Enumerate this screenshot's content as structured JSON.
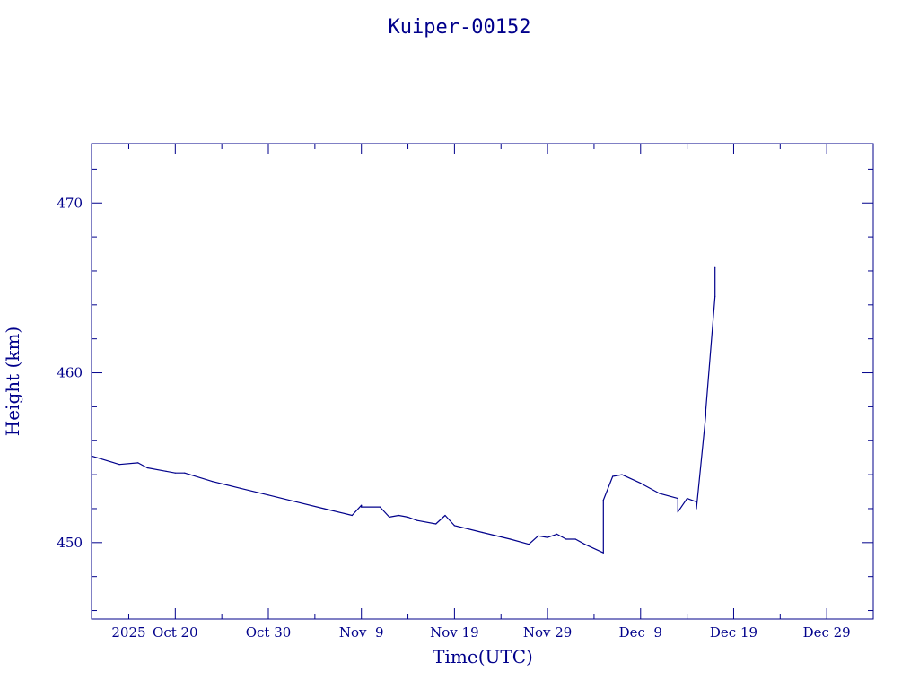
{
  "chart_data": {
    "type": "line",
    "title": "Kuiper-00152",
    "xlabel": "Time(UTC)",
    "ylabel": "Height (km)",
    "xlim": [
      "2025-10-11",
      "2026-01-03"
    ],
    "ylim": [
      445.5,
      473.5
    ],
    "grid": false,
    "x_tick_labels": [
      {
        "date": "2025-10-15",
        "label": "2025"
      },
      {
        "date": "2025-10-20",
        "label": "Oct 20"
      },
      {
        "date": "2025-10-30",
        "label": "Oct 30"
      },
      {
        "date": "2025-11-09",
        "label": "Nov  9"
      },
      {
        "date": "2025-11-19",
        "label": "Nov 19"
      },
      {
        "date": "2025-11-29",
        "label": "Nov 29"
      },
      {
        "date": "2025-12-09",
        "label": "Dec  9"
      },
      {
        "date": "2025-12-19",
        "label": "Dec 19"
      },
      {
        "date": "2025-12-29",
        "label": "Dec 29"
      }
    ],
    "y_ticks": [
      {
        "value": 450,
        "label": "450"
      },
      {
        "value": 460,
        "label": "460"
      },
      {
        "value": 470,
        "label": "470"
      }
    ],
    "series": [
      {
        "x": [
          "2025-10-11",
          "2025-10-14",
          "2025-10-16",
          "2025-10-17",
          "2025-10-19",
          "2025-10-20",
          "2025-10-21",
          "2025-10-24",
          "2025-10-27",
          "2025-10-30",
          "2025-11-02",
          "2025-11-05",
          "2025-11-08",
          "2025-11-09",
          "2025-11-09",
          "2025-11-11",
          "2025-11-12",
          "2025-11-13",
          "2025-11-14",
          "2025-11-15",
          "2025-11-17",
          "2025-11-18",
          "2025-11-19",
          "2025-11-19",
          "2025-11-22",
          "2025-11-25",
          "2025-11-27",
          "2025-11-28",
          "2025-11-29",
          "2025-11-30",
          "2025-12-01",
          "2025-12-02",
          "2025-12-03",
          "2025-12-05",
          "2025-12-05",
          "2025-12-06",
          "2025-12-07",
          "2025-12-09",
          "2025-12-11",
          "2025-12-13",
          "2025-12-13",
          "2025-12-14",
          "2025-12-15",
          "2025-12-15",
          "2025-12-16",
          "2025-12-16",
          "2025-12-17",
          "2025-12-17"
        ],
        "y": [
          455.1,
          454.6,
          454.7,
          454.4,
          454.2,
          454.1,
          454.1,
          453.6,
          453.2,
          452.8,
          452.4,
          452.0,
          451.6,
          452.2,
          452.1,
          452.1,
          451.5,
          451.6,
          451.5,
          451.3,
          451.1,
          451.6,
          451.0,
          451.0,
          450.6,
          450.2,
          449.9,
          450.4,
          450.3,
          450.5,
          450.2,
          450.2,
          449.9,
          449.4,
          452.5,
          453.9,
          454.0,
          453.5,
          452.9,
          452.6,
          451.8,
          452.6,
          452.4,
          452.0,
          457.5,
          457.8,
          464.5,
          466.2
        ]
      }
    ]
  }
}
